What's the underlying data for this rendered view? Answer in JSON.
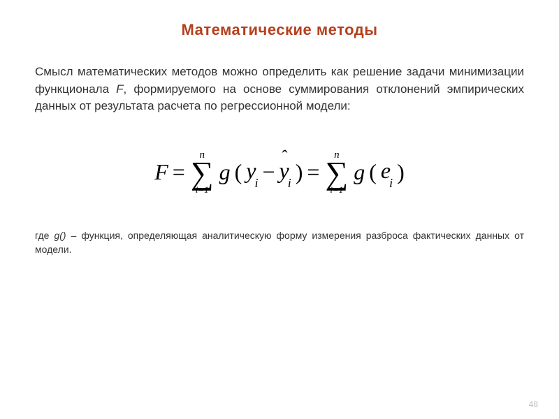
{
  "colors": {
    "title_color": "#b4401e",
    "text_color": "#333333",
    "note_color": "#333333",
    "page_num_color": "#bfbfbf",
    "background": "#ffffff"
  },
  "title": "Математические методы",
  "body_pre": "Смысл математических методов можно определить как решение задачи минимизации функционала ",
  "body_var": "F",
  "body_post": ", формируемого на основе суммирования отклонений эмпирических данных от результата расчета по регрессионной модели:",
  "formula": {
    "F": "F",
    "eq": "=",
    "sum_top": "n",
    "sum_bot": "i=1",
    "g": "g",
    "lparen": "(",
    "y": "y",
    "sub_i": "i",
    "minus": "−",
    "yhat": "y",
    "rparen": ")",
    "e": "e"
  },
  "note_pre": "где ",
  "note_g": "g()",
  "note_post": " – функция, определяющая аналитическую форму измерения разброса фактических данных от модели.",
  "page_number": "48"
}
